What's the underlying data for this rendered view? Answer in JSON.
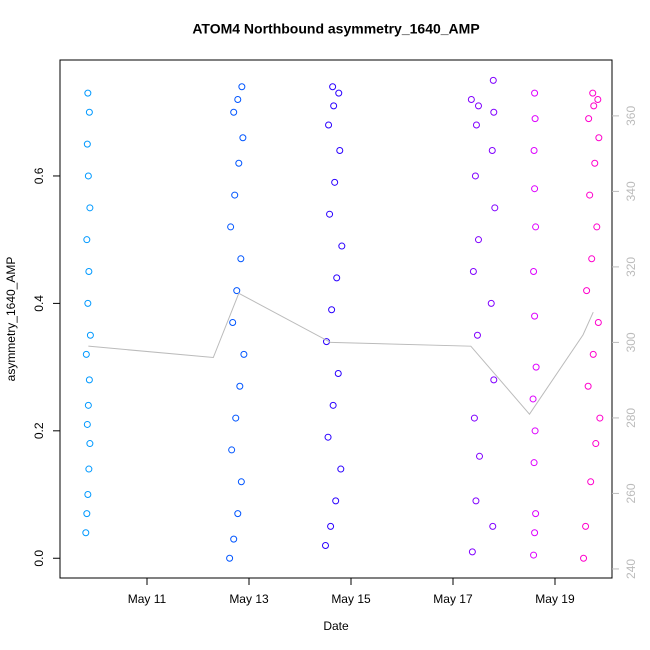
{
  "chart_data": {
    "type": "scatter",
    "title": "ATOM4 Northbound asymmetry_1640_AMP",
    "x_label": "Date",
    "y_label": "asymmetry_1640_AMP",
    "xlim": [
      9.294,
      20.118
    ],
    "ylim": [
      -0.031,
      0.782
    ],
    "y2lim": [
      237.6,
      374.8
    ],
    "xticks": [
      {
        "value": 11,
        "label": "May 11"
      },
      {
        "value": 13,
        "label": "May 13"
      },
      {
        "value": 15,
        "label": "May 15"
      },
      {
        "value": 17,
        "label": "May 17"
      },
      {
        "value": 19,
        "label": "May 19"
      }
    ],
    "yticks": [
      {
        "value": 0,
        "label": "0.0"
      },
      0.2,
      0.4,
      0.6
    ],
    "y2ticks": [
      240,
      260,
      280,
      300,
      320,
      340,
      360
    ],
    "grid": false,
    "series": [
      {
        "color": "#0099ff",
        "x": [
          9.8,
          9.82,
          9.84,
          9.86,
          9.88,
          9.83,
          9.85,
          9.87,
          9.81,
          9.89,
          9.84,
          9.86,
          9.82,
          9.88,
          9.85,
          9.83,
          9.87,
          9.84
        ],
        "values": [
          0.04,
          0.07,
          0.1,
          0.14,
          0.18,
          0.21,
          0.24,
          0.28,
          0.32,
          0.35,
          0.4,
          0.45,
          0.5,
          0.55,
          0.6,
          0.65,
          0.7,
          0.73
        ]
      },
      {
        "color": "#0055ff",
        "x": [
          12.62,
          12.7,
          12.78,
          12.85,
          12.66,
          12.74,
          12.82,
          12.9,
          12.68,
          12.76,
          12.84,
          12.64,
          12.72,
          12.8,
          12.88,
          12.7,
          12.78,
          12.86
        ],
        "values": [
          0.0,
          0.03,
          0.07,
          0.12,
          0.17,
          0.22,
          0.27,
          0.32,
          0.37,
          0.42,
          0.47,
          0.52,
          0.57,
          0.62,
          0.66,
          0.7,
          0.72,
          0.74
        ]
      },
      {
        "color": "#2a00ff",
        "x": [
          14.5,
          14.6,
          14.7,
          14.8,
          14.55,
          14.65,
          14.75,
          14.52,
          14.62,
          14.72,
          14.82,
          14.58,
          14.68,
          14.78,
          14.56,
          14.66,
          14.76,
          14.64
        ],
        "values": [
          0.02,
          0.05,
          0.09,
          0.14,
          0.19,
          0.24,
          0.29,
          0.34,
          0.39,
          0.44,
          0.49,
          0.54,
          0.59,
          0.64,
          0.68,
          0.71,
          0.73,
          0.74
        ]
      },
      {
        "color": "#8000ff",
        "x": [
          17.38,
          17.45,
          17.78,
          17.52,
          17.42,
          17.8,
          17.48,
          17.75,
          17.4,
          17.5,
          17.82,
          17.44,
          17.77,
          17.46,
          17.8,
          17.36,
          17.5,
          17.79
        ],
        "values": [
          0.01,
          0.09,
          0.05,
          0.16,
          0.22,
          0.28,
          0.35,
          0.4,
          0.45,
          0.5,
          0.55,
          0.6,
          0.64,
          0.68,
          0.7,
          0.72,
          0.71,
          0.75
        ]
      },
      {
        "color": "#dd00ff",
        "x": [
          18.58,
          18.6,
          18.62,
          18.59,
          18.61,
          18.57,
          18.63,
          18.6,
          18.58,
          18.62,
          18.6,
          18.59,
          18.61,
          18.6
        ],
        "values": [
          0.005,
          0.04,
          0.07,
          0.15,
          0.2,
          0.25,
          0.3,
          0.38,
          0.45,
          0.52,
          0.58,
          0.64,
          0.69,
          0.73
        ]
      },
      {
        "color": "#ff00cc",
        "x": [
          19.56,
          19.6,
          19.7,
          19.8,
          19.88,
          19.65,
          19.75,
          19.85,
          19.62,
          19.72,
          19.82,
          19.68,
          19.78,
          19.86,
          19.66,
          19.76,
          19.84,
          19.74
        ],
        "values": [
          0.0,
          0.05,
          0.12,
          0.18,
          0.22,
          0.27,
          0.32,
          0.37,
          0.42,
          0.47,
          0.52,
          0.57,
          0.62,
          0.66,
          0.69,
          0.71,
          0.72,
          0.73
        ]
      },
      {
        "type": "line",
        "axis": "y2",
        "color": "#bbbbbb",
        "x": [
          9.85,
          12.3,
          12.8,
          14.6,
          17.35,
          18.5,
          19.55,
          19.75
        ],
        "values": [
          299,
          296,
          313,
          300,
          299,
          281,
          302,
          308
        ]
      }
    ]
  }
}
